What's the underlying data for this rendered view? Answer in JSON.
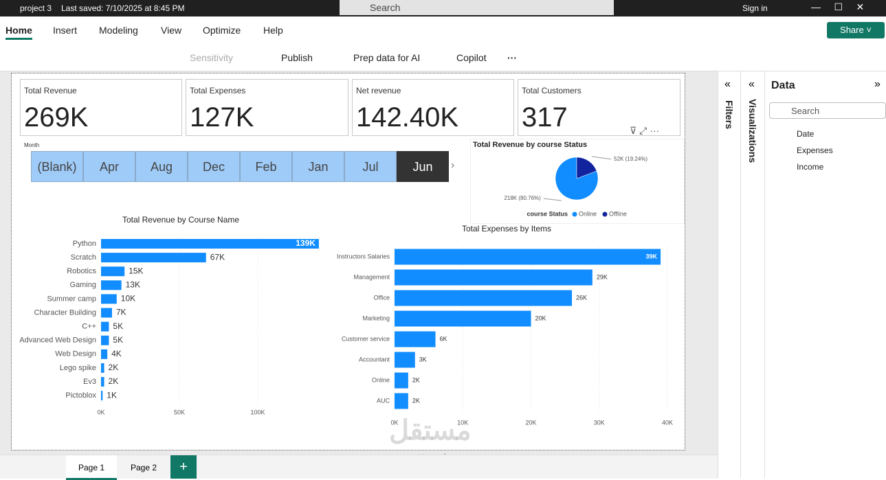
{
  "titlebar": {
    "file": "project 3",
    "saved": "Last saved: 7/10/2025 at 8:45 PM",
    "search": "Search",
    "sign_in": "Sign in"
  },
  "ribbon": {
    "tabs": [
      "Home",
      "Insert",
      "Modeling",
      "View",
      "Optimize",
      "Help"
    ],
    "share": "Share",
    "buttons": [
      "Sensitivity",
      "Publish",
      "Prep data for AI",
      "Copilot"
    ]
  },
  "cards": [
    {
      "label": "Total Revenue",
      "value": "269K"
    },
    {
      "label": "Total Expenses",
      "value": "127K"
    },
    {
      "label": "Net revenue",
      "value": "142.40K"
    },
    {
      "label": "Total Customers",
      "value": "317"
    }
  ],
  "slicer": {
    "title": "Month",
    "items": [
      "(Blank)",
      "Apr",
      "Aug",
      "Dec",
      "Feb",
      "Jan",
      "Jul",
      "Jun"
    ],
    "selected_index": 7
  },
  "revenue_by_status": {
    "type": "pie",
    "title": "Total Revenue by course Status",
    "legend_title": "course Status",
    "categories": [
      "Online",
      "Offline"
    ],
    "values": [
      80.76,
      19.24
    ],
    "value_labels": [
      "218K (80.76%)",
      "52K (19.24%)"
    ],
    "colors": [
      "#118DFF",
      "#12239E"
    ]
  },
  "revenue_by_course": {
    "type": "bar",
    "orientation": "horizontal",
    "title": "Total Revenue by Course Name",
    "categories": [
      "Python",
      "Scratch",
      "Robotics",
      "Gaming",
      "Summer camp",
      "Character Building",
      "C++",
      "Advanced Web Design",
      "Web Design",
      "Lego spike",
      "Ev3",
      "Pictoblox"
    ],
    "values": [
      139000,
      67000,
      15000,
      13000,
      10000,
      7000,
      5000,
      5000,
      4000,
      2000,
      2000,
      1000
    ],
    "value_labels": [
      "139K",
      "67K",
      "15K",
      "13K",
      "10K",
      "7K",
      "5K",
      "5K",
      "4K",
      "2K",
      "2K",
      "1K"
    ],
    "color": "#118DFF",
    "xlim": [
      0,
      140000
    ],
    "xticks": [
      {
        "value": 0,
        "label": "0K"
      },
      {
        "value": 50000,
        "label": "50K"
      },
      {
        "value": 100000,
        "label": "100K"
      }
    ],
    "grid": true
  },
  "expenses_by_item": {
    "type": "bar",
    "orientation": "horizontal",
    "title": "Total Expenses by Items",
    "categories": [
      "Instructors Salaries",
      "Management",
      "Office",
      "Marketing",
      "Customer service",
      "Accountant",
      "Online",
      "AUC"
    ],
    "values": [
      39000,
      29000,
      26000,
      20000,
      6000,
      3000,
      2000,
      2000
    ],
    "value_labels": [
      "39K",
      "29K",
      "26K",
      "20K",
      "6K",
      "3K",
      "2K",
      "2K"
    ],
    "color": "#118DFF",
    "xlim": [
      0,
      40000
    ],
    "xticks": [
      {
        "value": 0,
        "label": "0K"
      },
      {
        "value": 10000,
        "label": "10K"
      },
      {
        "value": 20000,
        "label": "20K"
      },
      {
        "value": 30000,
        "label": "30K"
      },
      {
        "value": 40000,
        "label": "40K"
      }
    ],
    "grid": true
  },
  "panes": {
    "filters": "Filters",
    "visualizations": "Visualizations",
    "data": "Data",
    "search": "Search",
    "tables": [
      "Date",
      "Expenses",
      "Income"
    ]
  },
  "pages": [
    "Page 1",
    "Page 2"
  ],
  "watermark": {
    "arabic": "مستقل",
    "site": "mostaql.com"
  }
}
